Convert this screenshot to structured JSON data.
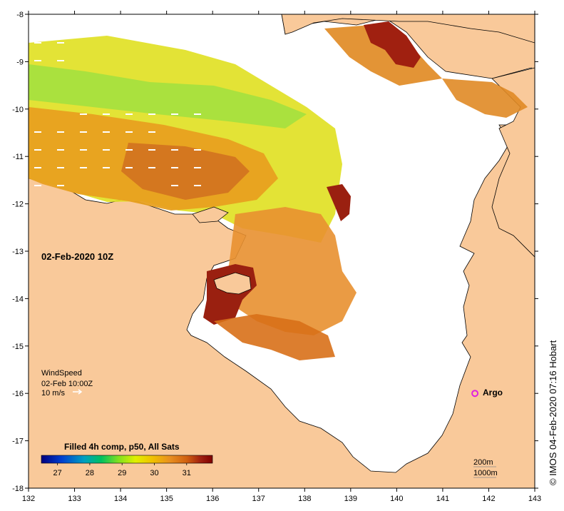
{
  "map": {
    "date_label": "02-Feb-2020 10Z",
    "x_ticks": [
      "132",
      "133",
      "134",
      "135",
      "136",
      "137",
      "138",
      "139",
      "140",
      "141",
      "142",
      "143"
    ],
    "y_ticks": [
      "-8",
      "-9",
      "-10",
      "-11",
      "-12",
      "-13",
      "-14",
      "-15",
      "-16",
      "-17",
      "-18"
    ],
    "lon_range": [
      132,
      143
    ],
    "lat_range": [
      -18,
      -8
    ]
  },
  "wind": {
    "title": "WindSpeed",
    "time": "02-Feb 10:00Z",
    "scale": "10 m/s"
  },
  "argo": {
    "label": "Argo",
    "lon": 141.7,
    "lat": -16.0,
    "color": "#e020e0"
  },
  "colorbar": {
    "title": "Filled 4h comp, p50, All Sats",
    "ticks": [
      "27",
      "28",
      "29",
      "30",
      "31"
    ],
    "range": [
      26.5,
      31.8
    ],
    "colors": [
      "#000080",
      "#0040d0",
      "#00a0c0",
      "#00c060",
      "#80e020",
      "#e0f000",
      "#f0c000",
      "#e89020",
      "#d06010",
      "#a02010",
      "#800000"
    ]
  },
  "depth_legend": {
    "line1": "200m",
    "line2": "1000m"
  },
  "credit": "© IMOS 04-Feb-2020 07:16 Hobart",
  "colors": {
    "land": "#f9c99a",
    "ocean": "#ffffff",
    "coast": "#000000"
  }
}
